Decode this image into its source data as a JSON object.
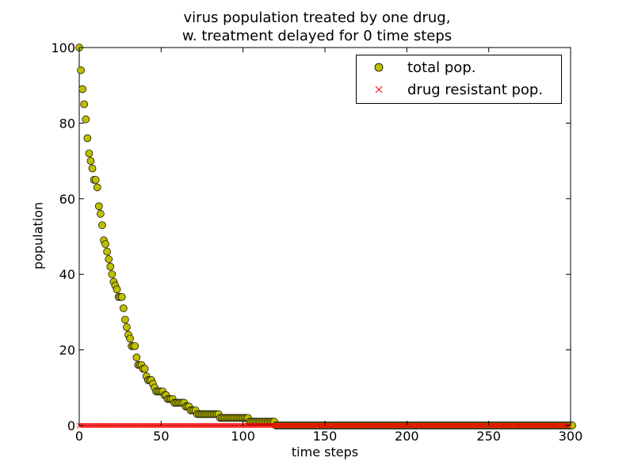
{
  "chart_data": {
    "type": "scatter",
    "title_lines": [
      "virus population treated by one drug,",
      "w. treatment delayed for 0 time steps"
    ],
    "xlabel": "time steps",
    "ylabel": "population",
    "xlim": [
      0,
      300
    ],
    "ylim": [
      0,
      100
    ],
    "x_ticks": [
      0,
      50,
      100,
      150,
      200,
      250,
      300
    ],
    "y_ticks": [
      0,
      20,
      40,
      60,
      80,
      100
    ],
    "x_tick_labels": [
      "0",
      "50",
      "100",
      "150",
      "200",
      "250",
      "300"
    ],
    "y_tick_labels": [
      "0",
      "20",
      "40",
      "60",
      "80",
      "100"
    ],
    "grid": false,
    "legend_position": "top-right",
    "series": [
      {
        "name": "total pop.",
        "marker": "circle",
        "color": "#bfbf00",
        "edge_color": "#000000",
        "x_start": 0,
        "x_step": 1,
        "values": [
          100,
          94,
          89,
          85,
          81,
          76,
          72,
          70,
          68,
          65,
          65,
          63,
          58,
          56,
          53,
          49,
          48,
          46,
          44,
          42,
          40,
          38,
          37,
          36,
          34,
          34,
          34,
          31,
          28,
          26,
          24,
          23,
          21,
          21,
          21,
          18,
          16,
          16,
          16,
          15,
          15,
          13,
          12,
          12,
          12,
          11,
          10,
          9,
          9,
          9,
          9,
          9,
          8,
          8,
          7,
          7,
          7,
          7,
          6,
          6,
          6,
          6,
          6,
          6,
          6,
          5,
          5,
          5,
          4,
          4,
          4,
          4,
          3,
          3,
          3,
          3,
          3,
          3,
          3,
          3,
          3,
          3,
          3,
          3,
          3,
          3,
          2,
          2,
          2,
          2,
          2,
          2,
          2,
          2,
          2,
          2,
          2,
          2,
          2,
          2,
          2,
          2,
          2,
          2,
          1,
          1,
          1,
          1,
          1,
          1,
          1,
          1,
          1,
          1,
          1,
          1,
          1,
          1,
          1,
          1,
          0,
          0,
          0,
          0,
          0,
          0,
          0,
          0,
          0,
          0,
          0,
          0,
          0,
          0,
          0,
          0,
          0,
          0,
          0,
          0,
          0,
          0,
          0,
          0,
          0,
          0,
          0,
          0,
          0,
          0,
          0,
          0,
          0,
          0,
          0,
          0,
          0,
          0,
          0,
          0,
          0,
          0,
          0,
          0,
          0,
          0,
          0,
          0,
          0,
          0,
          0,
          0,
          0,
          0,
          0,
          0,
          0,
          0,
          0,
          0,
          0,
          0,
          0,
          0,
          0,
          0,
          0,
          0,
          0,
          0,
          0,
          0,
          0,
          0,
          0,
          0,
          0,
          0,
          0,
          0,
          0,
          0,
          0,
          0,
          0,
          0,
          0,
          0,
          0,
          0,
          0,
          0,
          0,
          0,
          0,
          0,
          0,
          0,
          0,
          0,
          0,
          0,
          0,
          0,
          0,
          0,
          0,
          0,
          0,
          0,
          0,
          0,
          0,
          0,
          0,
          0,
          0,
          0,
          0,
          0,
          0,
          0,
          0,
          0,
          0,
          0,
          0,
          0,
          0,
          0,
          0,
          0,
          0,
          0,
          0,
          0,
          0,
          0,
          0,
          0,
          0,
          0,
          0,
          0,
          0,
          0,
          0,
          0,
          0,
          0,
          0,
          0,
          0,
          0,
          0,
          0,
          0,
          0,
          0,
          0,
          0,
          0,
          0,
          0,
          0,
          0,
          0,
          0,
          0,
          0,
          0,
          0,
          0,
          0,
          0,
          0,
          0,
          0,
          0,
          0,
          0,
          0
        ]
      },
      {
        "name": "drug resistant pop.",
        "marker": "x",
        "color": "#ff0000",
        "x_start": 0,
        "x_step": 1,
        "constant_value": 0,
        "count": 300
      }
    ]
  }
}
